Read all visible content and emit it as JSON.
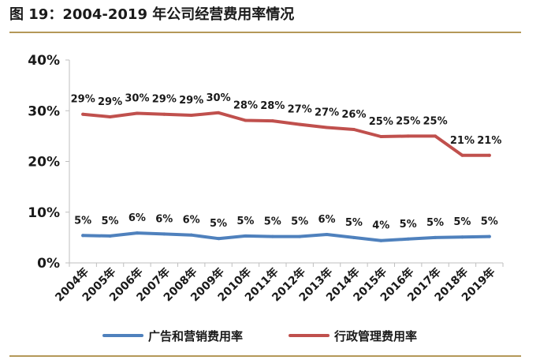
{
  "header": {
    "title": "图 19：2004-2019 年公司经营费用率情况"
  },
  "colors": {
    "series_blue": "#4f81bd",
    "series_red": "#c0504d",
    "axis": "#bfbfbf",
    "rule": "#b49858"
  },
  "chart_data": {
    "type": "line",
    "title": "",
    "xlabel": "",
    "ylabel": "",
    "ylim": [
      0,
      40
    ],
    "y_ticks": [
      "0%",
      "10%",
      "20%",
      "30%",
      "40%"
    ],
    "y_tick_values": [
      0,
      10,
      20,
      30,
      40
    ],
    "grid": false,
    "legend_position": "bottom",
    "categories": [
      "2004年",
      "2005年",
      "2006年",
      "2007年",
      "2008年",
      "2009年",
      "2010年",
      "2011年",
      "2012年",
      "2013年",
      "2014年",
      "2015年",
      "2016年",
      "2017年",
      "2018年",
      "2019年"
    ],
    "series": [
      {
        "name": "广告和营销费用率",
        "color": "#4f81bd",
        "values": [
          5.4,
          5.3,
          5.9,
          5.7,
          5.5,
          4.8,
          5.3,
          5.2,
          5.2,
          5.6,
          5.0,
          4.4,
          4.7,
          5.0,
          5.1,
          5.2
        ],
        "labels": [
          "5%",
          "5%",
          "6%",
          "6%",
          "6%",
          "5%",
          "5%",
          "5%",
          "5%",
          "6%",
          "5%",
          "4%",
          "5%",
          "5%",
          "5%",
          "5%"
        ]
      },
      {
        "name": "行政管理费用率",
        "color": "#c0504d",
        "values": [
          29.3,
          28.8,
          29.5,
          29.3,
          29.1,
          29.6,
          28.1,
          28.0,
          27.3,
          26.7,
          26.3,
          24.9,
          25.0,
          25.0,
          21.2,
          21.2
        ],
        "labels": [
          "29%",
          "29%",
          "30%",
          "29%",
          "29%",
          "30%",
          "28%",
          "28%",
          "27%",
          "27%",
          "26%",
          "25%",
          "25%",
          "25%",
          "21%",
          "21%"
        ]
      }
    ]
  }
}
